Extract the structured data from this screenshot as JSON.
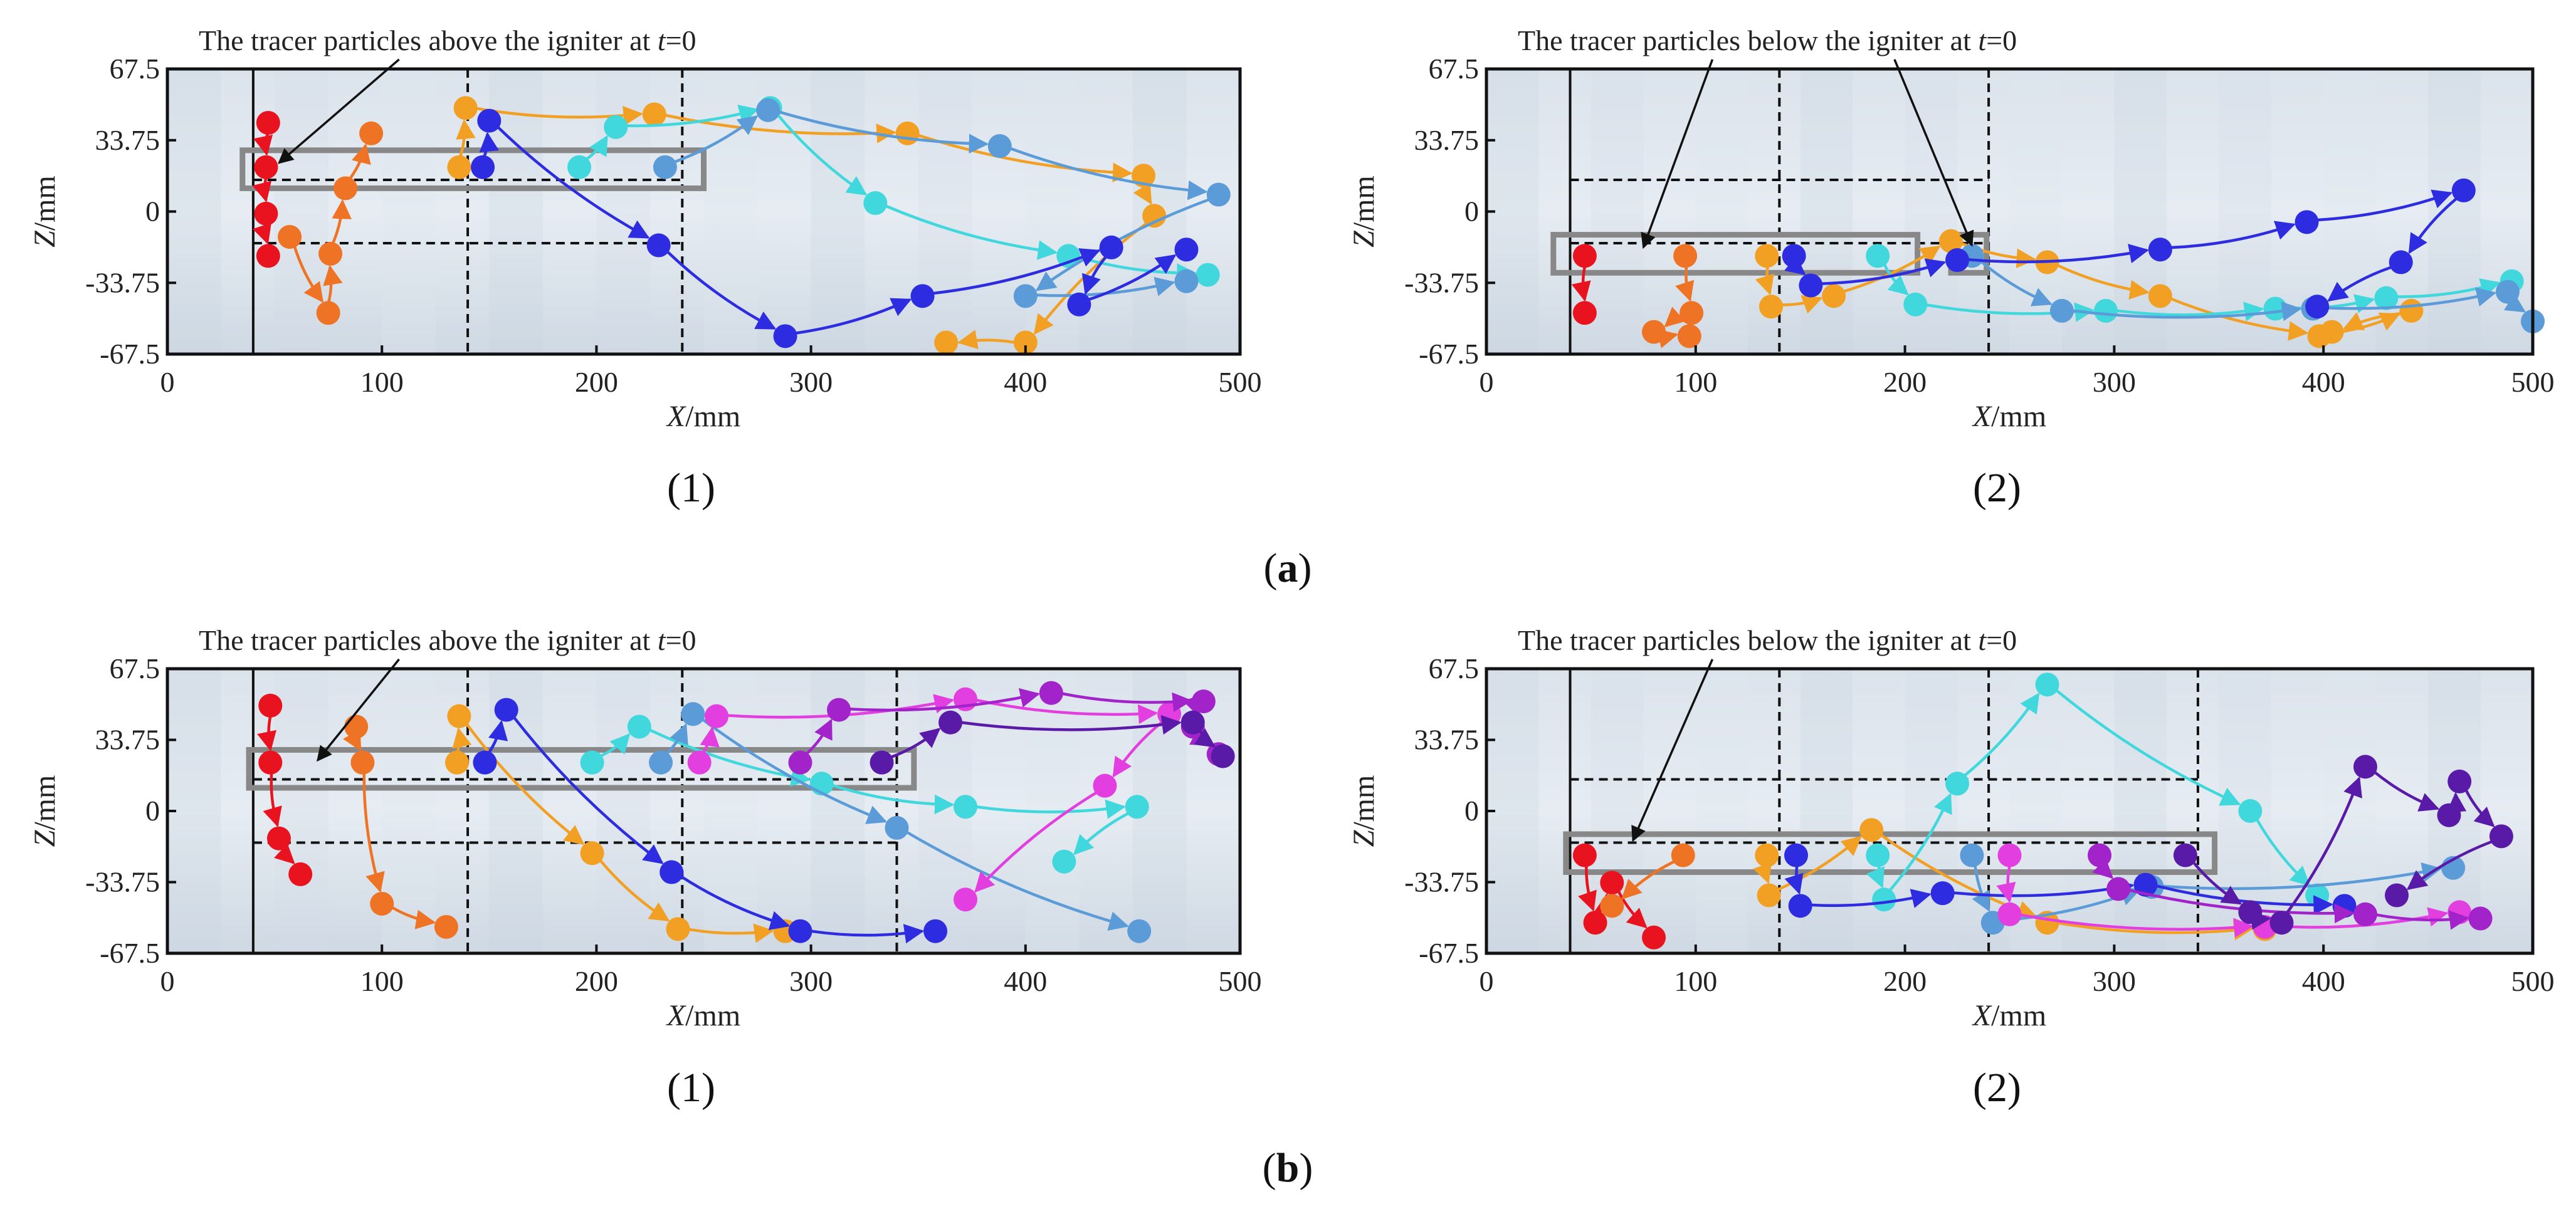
{
  "figure": {
    "group_labels": [
      {
        "open": "(",
        "letter": "a",
        "close": ")"
      },
      {
        "open": "(",
        "letter": "b",
        "close": ")"
      }
    ]
  },
  "chart_data": [
    {
      "type": "scatter",
      "panel": "(1)",
      "group": "a",
      "annotation": {
        "text_main": "The tracer particles above the igniter at ",
        "text_var": "t",
        "text_end": "=0"
      },
      "xlabel": {
        "var": "X",
        "unit": "/mm"
      },
      "ylabel": {
        "var": "Z",
        "unit": "/mm"
      },
      "xlim": [
        0,
        500
      ],
      "ylim": [
        -67.5,
        67.5
      ],
      "xticks": [
        "0",
        "100",
        "200",
        "300",
        "400",
        "500"
      ],
      "yticks": [
        "67.5",
        "33.75",
        "0",
        "-33.75",
        "-67.5"
      ],
      "xtick_values": [
        0,
        100,
        200,
        300,
        400,
        500
      ],
      "ytick_values": [
        67.5,
        33.75,
        0,
        -33.75,
        -67.5
      ],
      "igniter_line_x": 40,
      "vlines_x": [
        140,
        240
      ],
      "hlines": [
        {
          "y": 15,
          "x1": 40,
          "x2": 240
        },
        {
          "y": -15,
          "x1": 40,
          "x2": 240
        }
      ],
      "box": {
        "x1": 35,
        "x2": 250,
        "y1": 11,
        "y2": 29
      },
      "pointer": {
        "from": [
          108,
          72
        ],
        "to": [
          52,
          23
        ]
      },
      "series": [
        {
          "name": "red",
          "color": "#e8131e",
          "points": [
            [
              47,
              42
            ],
            [
              46,
              21
            ],
            [
              46,
              -1
            ],
            [
              47,
              -21
            ]
          ]
        },
        {
          "name": "orange-red",
          "color": "#ee7324",
          "points": [
            [
              57,
              -12
            ],
            [
              75,
              -48
            ],
            [
              76,
              -20
            ],
            [
              83,
              11
            ],
            [
              95,
              37
            ]
          ]
        },
        {
          "name": "orange",
          "color": "#f2a024",
          "points": [
            [
              136,
              21
            ],
            [
              139,
              49
            ],
            [
              227,
              46
            ],
            [
              345,
              37
            ],
            [
              455,
              17
            ],
            [
              460,
              -2
            ],
            [
              400,
              -62
            ],
            [
              363,
              -62
            ]
          ]
        },
        {
          "name": "cyan",
          "color": "#40d8dd",
          "points": [
            [
              192,
              21
            ],
            [
              209,
              40
            ],
            [
              281,
              49
            ],
            [
              330,
              4
            ],
            [
              420,
              -21
            ],
            [
              485,
              -30
            ]
          ]
        },
        {
          "name": "light-blue",
          "color": "#5b9bd8",
          "points": [
            [
              232,
              21
            ],
            [
              280,
              48
            ],
            [
              388,
              31
            ],
            [
              490,
              8
            ],
            [
              400,
              -40
            ],
            [
              475,
              -33
            ]
          ]
        },
        {
          "name": "blue",
          "color": "#2d2ce0",
          "points": [
            [
              147,
              21
            ],
            [
              150,
              43
            ],
            [
              229,
              -16
            ],
            [
              288,
              -59
            ],
            [
              352,
              -40
            ],
            [
              440,
              -17
            ],
            [
              425,
              -44
            ],
            [
              475,
              -18
            ]
          ]
        }
      ]
    },
    {
      "type": "scatter",
      "panel": "(2)",
      "group": "a",
      "annotation": {
        "text_main": "The tracer particles below the igniter at ",
        "text_var": "t",
        "text_end": "=0"
      },
      "xlabel": {
        "var": "X",
        "unit": "/mm"
      },
      "ylabel": {
        "var": "Z",
        "unit": "/mm"
      },
      "xlim": [
        0,
        500
      ],
      "ylim": [
        -67.5,
        67.5
      ],
      "xticks": [
        "0",
        "100",
        "200",
        "300",
        "400",
        "500"
      ],
      "yticks": [
        "67.5",
        "33.75",
        "0",
        "-33.75",
        "-67.5"
      ],
      "xtick_values": [
        0,
        100,
        200,
        300,
        400,
        500
      ],
      "ytick_values": [
        67.5,
        33.75,
        0,
        -33.75,
        -67.5
      ],
      "igniter_line_x": 40,
      "vlines_x": [
        140,
        240
      ],
      "hlines": [
        {
          "y": 15,
          "x1": 40,
          "x2": 240
        },
        {
          "y": -15,
          "x1": 40,
          "x2": 240
        }
      ],
      "box": {
        "x1": 32,
        "x2": 206,
        "y1": -29,
        "y2": -11
      },
      "box2": {
        "x1": 222,
        "x2": 239,
        "y1": -29,
        "y2": -11
      },
      "pointer": {
        "from": [
          108,
          72
        ],
        "to": [
          75,
          -17
        ]
      },
      "pointer2": {
        "from": [
          195,
          72
        ],
        "to": [
          232,
          -16
        ]
      },
      "series": [
        {
          "name": "red",
          "color": "#e8131e",
          "points": [
            [
              47,
              -21
            ],
            [
              47,
              -48
            ]
          ]
        },
        {
          "name": "orange-red",
          "color": "#ee7324",
          "points": [
            [
              95,
              -21
            ],
            [
              98,
              -48
            ],
            [
              80,
              -57
            ],
            [
              97,
              -59
            ]
          ]
        },
        {
          "name": "orange",
          "color": "#f2a024",
          "points": [
            [
              134,
              -21
            ],
            [
              136,
              -45
            ],
            [
              166,
              -40
            ],
            [
              222,
              -14
            ],
            [
              268,
              -24
            ],
            [
              322,
              -40
            ],
            [
              398,
              -59
            ],
            [
              442,
              -47
            ],
            [
              404,
              -57
            ]
          ]
        },
        {
          "name": "cyan",
          "color": "#40d8dd",
          "points": [
            [
              187,
              -21
            ],
            [
              205,
              -44
            ],
            [
              296,
              -47
            ],
            [
              377,
              -46
            ],
            [
              430,
              -41
            ],
            [
              490,
              -33
            ]
          ]
        },
        {
          "name": "light-blue",
          "color": "#5b9bd8",
          "points": [
            [
              232,
              -21
            ],
            [
              275,
              -47
            ],
            [
              395,
              -46
            ],
            [
              488,
              -38
            ],
            [
              500,
              -52
            ]
          ]
        },
        {
          "name": "blue",
          "color": "#2d2ce0",
          "points": [
            [
              147,
              -21
            ],
            [
              155,
              -35
            ],
            [
              225,
              -23
            ],
            [
              322,
              -18
            ],
            [
              392,
              -5
            ],
            [
              467,
              10
            ],
            [
              437,
              -24
            ],
            [
              397,
              -45
            ]
          ]
        }
      ]
    },
    {
      "type": "scatter",
      "panel": "(1)",
      "group": "b",
      "annotation": {
        "text_main": "The tracer particles above the igniter at ",
        "text_var": "t",
        "text_end": "=0"
      },
      "xlabel": {
        "var": "X",
        "unit": "/mm"
      },
      "ylabel": {
        "var": "Z",
        "unit": "/mm"
      },
      "xlim": [
        0,
        500
      ],
      "ylim": [
        -67.5,
        67.5
      ],
      "xticks": [
        "0",
        "100",
        "200",
        "300",
        "400",
        "500"
      ],
      "yticks": [
        "67.5",
        "33.75",
        "0",
        "-33.75",
        "-67.5"
      ],
      "xtick_values": [
        0,
        100,
        200,
        300,
        400,
        500
      ],
      "ytick_values": [
        67.5,
        33.75,
        0,
        -33.75,
        -67.5
      ],
      "igniter_line_x": 40,
      "vlines_x": [
        140,
        240,
        340
      ],
      "hlines": [
        {
          "y": 15,
          "x1": 40,
          "x2": 340
        },
        {
          "y": -15,
          "x1": 40,
          "x2": 340
        }
      ],
      "box": {
        "x1": 38,
        "x2": 348,
        "y1": 11,
        "y2": 29
      },
      "pointer": {
        "from": [
          108,
          72
        ],
        "to": [
          70,
          24
        ]
      },
      "series": [
        {
          "name": "red",
          "color": "#e8131e",
          "points": [
            [
              48,
              50
            ],
            [
              48,
              23
            ],
            [
              52,
              -13
            ],
            [
              62,
              -30
            ]
          ]
        },
        {
          "name": "orange-red",
          "color": "#ee7324",
          "points": [
            [
              88,
              40
            ],
            [
              91,
              23
            ],
            [
              100,
              -44
            ],
            [
              130,
              -55
            ]
          ]
        },
        {
          "name": "orange",
          "color": "#f2a024",
          "points": [
            [
              135,
              23
            ],
            [
              136,
              45
            ],
            [
              198,
              -20
            ],
            [
              238,
              -56
            ],
            [
              288,
              -57
            ]
          ]
        },
        {
          "name": "cyan",
          "color": "#40d8dd",
          "points": [
            [
              198,
              23
            ],
            [
              220,
              40
            ],
            [
              305,
              13
            ],
            [
              372,
              2
            ],
            [
              452,
              2
            ],
            [
              418,
              -24
            ]
          ]
        },
        {
          "name": "light-blue",
          "color": "#5b9bd8",
          "points": [
            [
              230,
              23
            ],
            [
              245,
              46
            ],
            [
              340,
              -8
            ],
            [
              453,
              -57
            ]
          ]
        },
        {
          "name": "blue",
          "color": "#2d2ce0",
          "points": [
            [
              148,
              23
            ],
            [
              158,
              48
            ],
            [
              235,
              -29
            ],
            [
              295,
              -57
            ],
            [
              358,
              -57
            ]
          ]
        },
        {
          "name": "magenta",
          "color": "#e33fe0",
          "points": [
            [
              248,
              23
            ],
            [
              256,
              45
            ],
            [
              372,
              53
            ],
            [
              467,
              46
            ],
            [
              437,
              12
            ],
            [
              372,
              -42
            ]
          ]
        },
        {
          "name": "violet",
          "color": "#a123c9",
          "points": [
            [
              295,
              23
            ],
            [
              313,
              48
            ],
            [
              412,
              56
            ],
            [
              483,
              52
            ],
            [
              478,
              40
            ],
            [
              490,
              27
            ]
          ]
        },
        {
          "name": "indigo",
          "color": "#5a1aa8",
          "points": [
            [
              333,
              23
            ],
            [
              365,
              42
            ],
            [
              478,
              42
            ],
            [
              492,
              26
            ]
          ]
        }
      ]
    },
    {
      "type": "scatter",
      "panel": "(2)",
      "group": "b",
      "annotation": {
        "text_main": "The tracer particles below the igniter at ",
        "text_var": "t",
        "text_end": "=0"
      },
      "xlabel": {
        "var": "X",
        "unit": "/mm"
      },
      "ylabel": {
        "var": "Z",
        "unit": "/mm"
      },
      "xlim": [
        0,
        500
      ],
      "ylim": [
        -67.5,
        67.5
      ],
      "xticks": [
        "0",
        "100",
        "200",
        "300",
        "400",
        "500"
      ],
      "yticks": [
        "67.5",
        "33.75",
        "0",
        "-33.75",
        "-67.5"
      ],
      "xtick_values": [
        0,
        100,
        200,
        300,
        400,
        500
      ],
      "ytick_values": [
        67.5,
        33.75,
        0,
        -33.75,
        -67.5
      ],
      "igniter_line_x": 40,
      "vlines_x": [
        140,
        240,
        340
      ],
      "hlines": [
        {
          "y": 15,
          "x1": 40,
          "x2": 340
        },
        {
          "y": -15,
          "x1": 40,
          "x2": 340
        }
      ],
      "box": {
        "x1": 38,
        "x2": 348,
        "y1": -29,
        "y2": -11
      },
      "pointer": {
        "from": [
          108,
          72
        ],
        "to": [
          70,
          -14
        ]
      },
      "series": [
        {
          "name": "red",
          "color": "#e8131e",
          "points": [
            [
              47,
              -21
            ],
            [
              52,
              -53
            ],
            [
              60,
              -34
            ],
            [
              80,
              -60
            ]
          ]
        },
        {
          "name": "orange-red",
          "color": "#ee7324",
          "points": [
            [
              94,
              -21
            ],
            [
              60,
              -45
            ]
          ]
        },
        {
          "name": "orange",
          "color": "#f2a024",
          "points": [
            [
              134,
              -21
            ],
            [
              135,
              -40
            ],
            [
              184,
              -9
            ],
            [
              268,
              -53
            ],
            [
              372,
              -56
            ]
          ]
        },
        {
          "name": "cyan",
          "color": "#40d8dd",
          "points": [
            [
              187,
              -21
            ],
            [
              190,
              -42
            ],
            [
              225,
              13
            ],
            [
              268,
              60
            ],
            [
              365,
              0
            ],
            [
              397,
              -40
            ]
          ]
        },
        {
          "name": "light-blue",
          "color": "#5b9bd8",
          "points": [
            [
              232,
              -21
            ],
            [
              242,
              -53
            ],
            [
              318,
              -36
            ],
            [
              462,
              -27
            ]
          ]
        },
        {
          "name": "blue",
          "color": "#2d2ce0",
          "points": [
            [
              148,
              -21
            ],
            [
              150,
              -45
            ],
            [
              218,
              -39
            ],
            [
              315,
              -35
            ],
            [
              410,
              -45
            ]
          ]
        },
        {
          "name": "magenta",
          "color": "#e33fe0",
          "points": [
            [
              250,
              -21
            ],
            [
              250,
              -49
            ],
            [
              372,
              -55
            ],
            [
              465,
              -48
            ]
          ]
        },
        {
          "name": "violet",
          "color": "#a123c9",
          "points": [
            [
              293,
              -21
            ],
            [
              302,
              -37
            ],
            [
              420,
              -49
            ],
            [
              475,
              -51
            ]
          ]
        },
        {
          "name": "indigo",
          "color": "#5a1aa8",
          "points": [
            [
              334,
              -21
            ],
            [
              365,
              -48
            ],
            [
              380,
              -53
            ],
            [
              420,
              21
            ],
            [
              460,
              -2
            ],
            [
              465,
              14
            ],
            [
              485,
              -12
            ],
            [
              435,
              -40
            ]
          ]
        }
      ]
    }
  ]
}
